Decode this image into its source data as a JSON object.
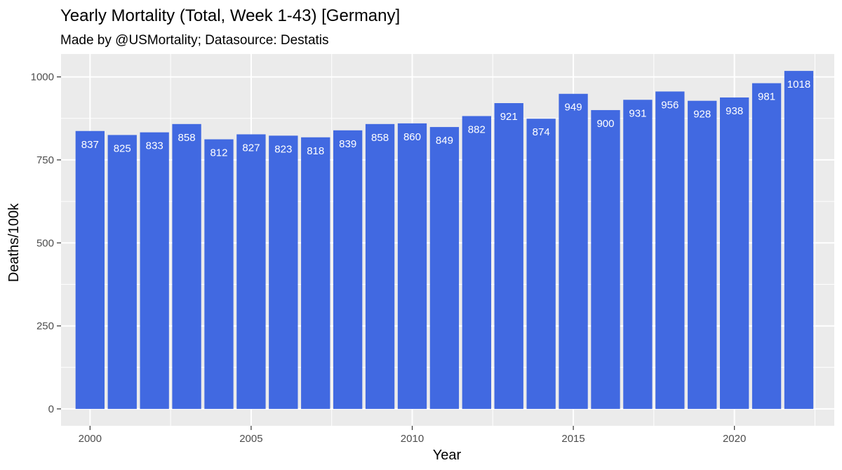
{
  "chart_data": {
    "type": "bar",
    "title": "Yearly Mortality (Total, Week 1-43) [Germany]",
    "subtitle": "Made by @USMortality; Datasource: Destatis",
    "xlabel": "Year",
    "ylabel": "Deaths/100k",
    "categories": [
      2000,
      2001,
      2002,
      2003,
      2004,
      2005,
      2006,
      2007,
      2008,
      2009,
      2010,
      2011,
      2012,
      2013,
      2014,
      2015,
      2016,
      2017,
      2018,
      2019,
      2020,
      2021,
      2022
    ],
    "values": [
      837,
      825,
      833,
      858,
      812,
      827,
      823,
      818,
      839,
      858,
      860,
      849,
      882,
      921,
      874,
      949,
      900,
      931,
      956,
      928,
      938,
      981,
      1018
    ],
    "labels": [
      "837",
      "825",
      "833",
      "858",
      "812",
      "827",
      "823",
      "818",
      "839",
      "858",
      "860",
      "849",
      "882",
      "921",
      "874",
      "949",
      "900",
      "931",
      "956",
      "928",
      "938",
      "981",
      "1018"
    ],
    "xlim": [
      1999.1,
      2023.1
    ],
    "ylim": [
      -50.9,
      1068.9
    ],
    "x_ticks": [
      2000,
      2005,
      2010,
      2015,
      2020
    ],
    "x_tick_labels": [
      "2000",
      "2005",
      "2010",
      "2015",
      "2020"
    ],
    "y_ticks": [
      0,
      250,
      500,
      750,
      1000
    ],
    "y_tick_labels": [
      "0",
      "250",
      "500",
      "750",
      "1000"
    ],
    "grid": true,
    "legend": "none",
    "colors": {
      "bar": "#4169E1",
      "panel": "#EBEBEB",
      "grid": "#FFFFFF",
      "bar_label": "#FFFFFF"
    }
  }
}
